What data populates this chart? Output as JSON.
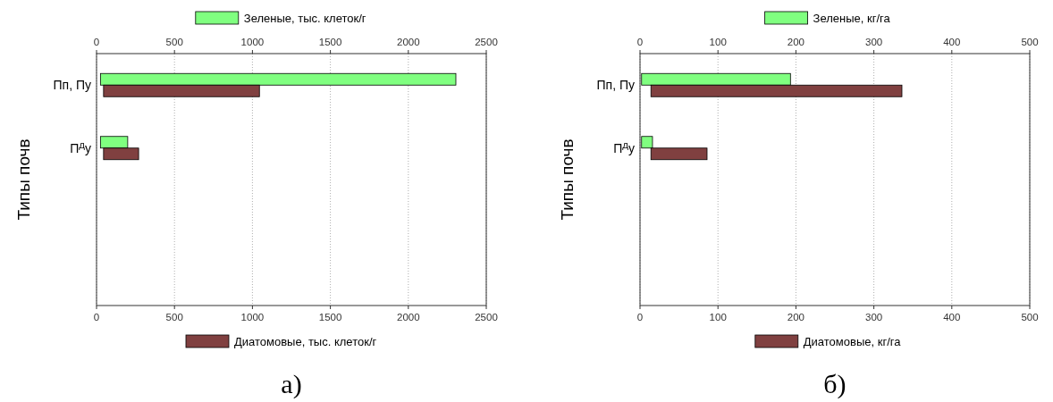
{
  "chart_data": [
    {
      "type": "bar",
      "orientation": "horizontal",
      "title": "а)",
      "ylabel": "Типы почв",
      "categories": [
        "Пп, Пу",
        "П$^{Д}$у",
        null,
        null
      ],
      "xlim": [
        0,
        2500
      ],
      "xticks": [
        0,
        500,
        1000,
        1500,
        2000,
        2500
      ],
      "x2lim": [
        0,
        2500
      ],
      "x2ticks": [
        0,
        500,
        1000,
        1500,
        2000,
        2500
      ],
      "grid": "x",
      "legend": "bottom",
      "series": [
        {
          "name": "Зеленые, тыс. клеток/г",
          "color": "#80ff80",
          "axis": "x2",
          "base": [
            25,
            25,
            null,
            null
          ],
          "values": [
            2280,
            175,
            null,
            null
          ]
        },
        {
          "name": "Диатомовые, тыс. клеток/г",
          "color": "#804040",
          "base": [
            45,
            45,
            null,
            null
          ],
          "values": [
            1000,
            225,
            null,
            null
          ]
        }
      ]
    },
    {
      "type": "bar",
      "orientation": "horizontal",
      "title": "б)",
      "ylabel": "Типы почв",
      "categories": [
        "Пп, Пу",
        "П$^{Д}$у",
        null,
        null
      ],
      "xlim": [
        0,
        500
      ],
      "xticks": [
        0,
        100,
        200,
        300,
        400,
        500
      ],
      "x2lim": [
        0,
        500
      ],
      "x2ticks": [
        0,
        100,
        200,
        300,
        400,
        500
      ],
      "grid": "x",
      "legend": "bottom",
      "series": [
        {
          "name": "Зеленые, кг/га",
          "color": "#80ff80",
          "axis": "x2",
          "base": [
            2,
            2,
            null,
            null
          ],
          "values": [
            191,
            14,
            null,
            null
          ]
        },
        {
          "name": "Диатомовые, кг/га",
          "color": "#804040",
          "base": [
            14,
            14,
            null,
            null
          ],
          "values": [
            322,
            72,
            null,
            null
          ]
        }
      ]
    }
  ]
}
